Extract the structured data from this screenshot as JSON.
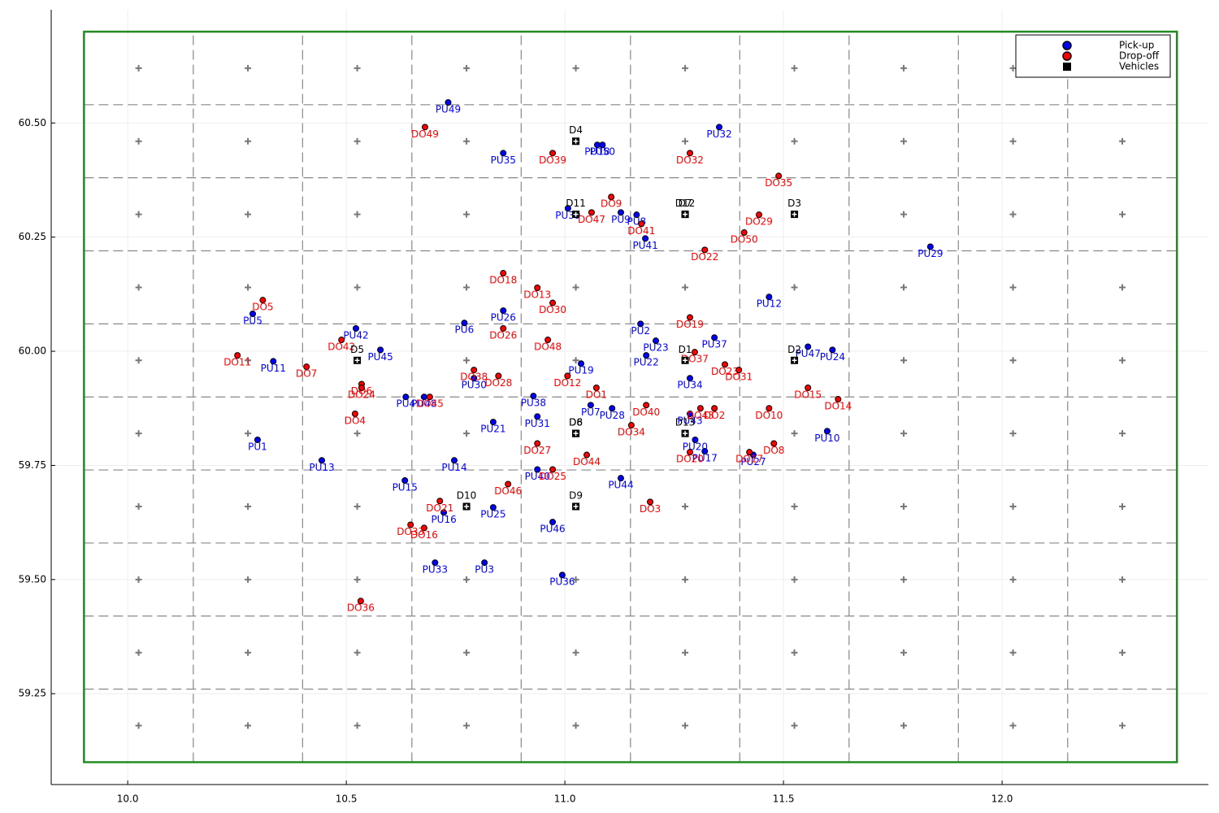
{
  "chart_data": {
    "type": "scatter",
    "xlim": [
      9.825,
      12.472
    ],
    "ylim": [
      59.051,
      60.748
    ],
    "xticks": [
      {
        "value": 10.0,
        "label": "10.0"
      },
      {
        "value": 10.5,
        "label": "10.5"
      },
      {
        "value": 11.0,
        "label": "11.0"
      },
      {
        "value": 11.5,
        "label": "11.5"
      },
      {
        "value": 12.0,
        "label": "12.0"
      }
    ],
    "yticks": [
      {
        "value": 59.25,
        "label": "59.25"
      },
      {
        "value": 59.5,
        "label": "59.50"
      },
      {
        "value": 59.75,
        "label": "59.75"
      },
      {
        "value": 60.0,
        "label": "60.00"
      },
      {
        "value": 60.25,
        "label": "60.25"
      },
      {
        "value": 60.5,
        "label": "60.50"
      }
    ],
    "grid": true,
    "x_divisions": [
      9.9,
      10.15,
      10.4,
      10.65,
      10.9,
      11.15,
      11.4,
      11.65,
      11.9,
      12.15,
      12.4
    ],
    "y_divisions": [
      59.1,
      59.26,
      59.42,
      59.58,
      59.74,
      59.9,
      60.06,
      60.22,
      60.38,
      60.54,
      60.7
    ],
    "boundary_color": "#228b22",
    "legend": "top-right",
    "series": [
      {
        "name": "Pick-up",
        "color": "#0000ff",
        "labels": [
          "PU1",
          "PU2",
          "PU3",
          "PU4",
          "PU5",
          "PU6",
          "PU7",
          "PU8",
          "PU9",
          "PU10",
          "PU11",
          "PU12",
          "PU13",
          "PU14",
          "PU15",
          "PU16",
          "PU17",
          "PU18",
          "PU19",
          "PU20",
          "PU21",
          "PU22",
          "PU23",
          "PU24",
          "PU25",
          "PU26",
          "PU27",
          "PU28",
          "PU29",
          "PU30",
          "PU31",
          "PU32",
          "PU33",
          "PU34",
          "PU35",
          "PU36",
          "PU37",
          "PU38",
          "PU39",
          "PU40",
          "PU41",
          "PU42",
          "PU43",
          "PU44",
          "PU45",
          "PU46",
          "PU47",
          "PU48",
          "PU49",
          "PU50"
        ],
        "x": [
          10.297,
          11.173,
          10.816,
          10.636,
          10.286,
          10.77,
          11.059,
          11.164,
          11.128,
          11.6,
          10.333,
          11.467,
          10.444,
          10.747,
          10.634,
          10.723,
          11.32,
          11.074,
          11.037,
          11.298,
          10.836,
          11.186,
          11.208,
          11.612,
          10.836,
          10.859,
          11.431,
          11.108,
          11.836,
          10.792,
          10.937,
          11.353,
          10.703,
          11.286,
          10.859,
          10.994,
          11.342,
          10.928,
          11.007,
          10.937,
          11.184,
          10.522,
          11.286,
          11.128,
          10.578,
          10.972,
          11.556,
          10.678,
          10.733,
          11.086
        ],
        "y": [
          59.806,
          60.06,
          59.537,
          59.9,
          60.082,
          60.062,
          59.882,
          60.299,
          60.304,
          59.825,
          59.978,
          60.119,
          59.761,
          59.761,
          59.717,
          59.647,
          59.781,
          60.452,
          59.973,
          59.806,
          59.845,
          59.991,
          60.023,
          60.003,
          59.658,
          60.089,
          59.773,
          59.875,
          60.229,
          59.941,
          59.857,
          60.491,
          59.537,
          59.941,
          60.434,
          59.51,
          60.03,
          59.902,
          60.313,
          59.741,
          60.247,
          60.05,
          59.863,
          59.722,
          60.003,
          59.626,
          60.01,
          59.9,
          60.545,
          60.452
        ]
      },
      {
        "name": "Drop-off",
        "color": "#ff0000",
        "labels": [
          "DO1",
          "DO2",
          "DO3",
          "DO4",
          "DO5",
          "DO6",
          "DO7",
          "DO8",
          "DO9",
          "DO10",
          "DO11",
          "DO12",
          "DO13",
          "DO14",
          "DO15",
          "DO16",
          "DO17",
          "DO18",
          "DO19",
          "DO20",
          "DO21",
          "DO22",
          "DO23",
          "DO24",
          "DO25",
          "DO26",
          "DO27",
          "DO28",
          "DO29",
          "DO30",
          "DO31",
          "DO32",
          "DO33",
          "DO34",
          "DO35",
          "DO36",
          "DO37",
          "DO38",
          "DO39",
          "DO40",
          "DO41",
          "DO42",
          "DO43",
          "DO44",
          "DO45",
          "DO46",
          "DO47",
          "DO48",
          "DO49",
          "DO50"
        ],
        "x": [
          11.072,
          11.342,
          11.195,
          10.52,
          10.309,
          10.535,
          10.409,
          11.478,
          11.106,
          11.467,
          10.251,
          11.006,
          10.937,
          11.625,
          11.556,
          10.678,
          11.422,
          10.859,
          11.286,
          11.286,
          10.714,
          11.32,
          11.366,
          10.535,
          10.972,
          10.859,
          10.937,
          10.848,
          11.444,
          10.972,
          11.398,
          11.286,
          10.647,
          11.152,
          11.489,
          10.533,
          11.297,
          10.792,
          10.972,
          11.186,
          11.175,
          10.489,
          11.31,
          11.05,
          10.691,
          10.87,
          11.061,
          10.961,
          10.68,
          11.41
        ],
        "y": [
          59.92,
          59.875,
          59.67,
          59.863,
          60.112,
          59.928,
          59.966,
          59.798,
          60.338,
          59.875,
          59.991,
          59.946,
          60.139,
          59.895,
          59.92,
          59.613,
          59.779,
          60.171,
          60.074,
          59.779,
          59.672,
          60.222,
          59.971,
          59.92,
          59.741,
          60.05,
          59.798,
          59.946,
          60.299,
          60.106,
          59.959,
          60.434,
          59.62,
          59.838,
          60.384,
          59.453,
          59.998,
          59.959,
          60.434,
          59.882,
          60.279,
          60.025,
          59.875,
          59.773,
          59.9,
          59.709,
          60.304,
          60.025,
          60.491,
          60.26
        ]
      },
      {
        "name": "Vehicles",
        "color": "#000000",
        "marker": "square",
        "labels": [
          "D1",
          "D2",
          "D3",
          "D4",
          "D5",
          "D6",
          "D7",
          "D8",
          "D9",
          "D10",
          "D11",
          "D12",
          "D13"
        ],
        "x": [
          11.275,
          11.525,
          11.525,
          11.025,
          10.525,
          11.025,
          11.275,
          11.025,
          11.025,
          10.775,
          11.025,
          11.275,
          11.275
        ],
        "y": [
          59.98,
          59.98,
          60.3,
          60.46,
          59.98,
          59.82,
          60.3,
          59.82,
          59.66,
          59.66,
          60.3,
          60.3,
          59.82
        ]
      }
    ]
  }
}
